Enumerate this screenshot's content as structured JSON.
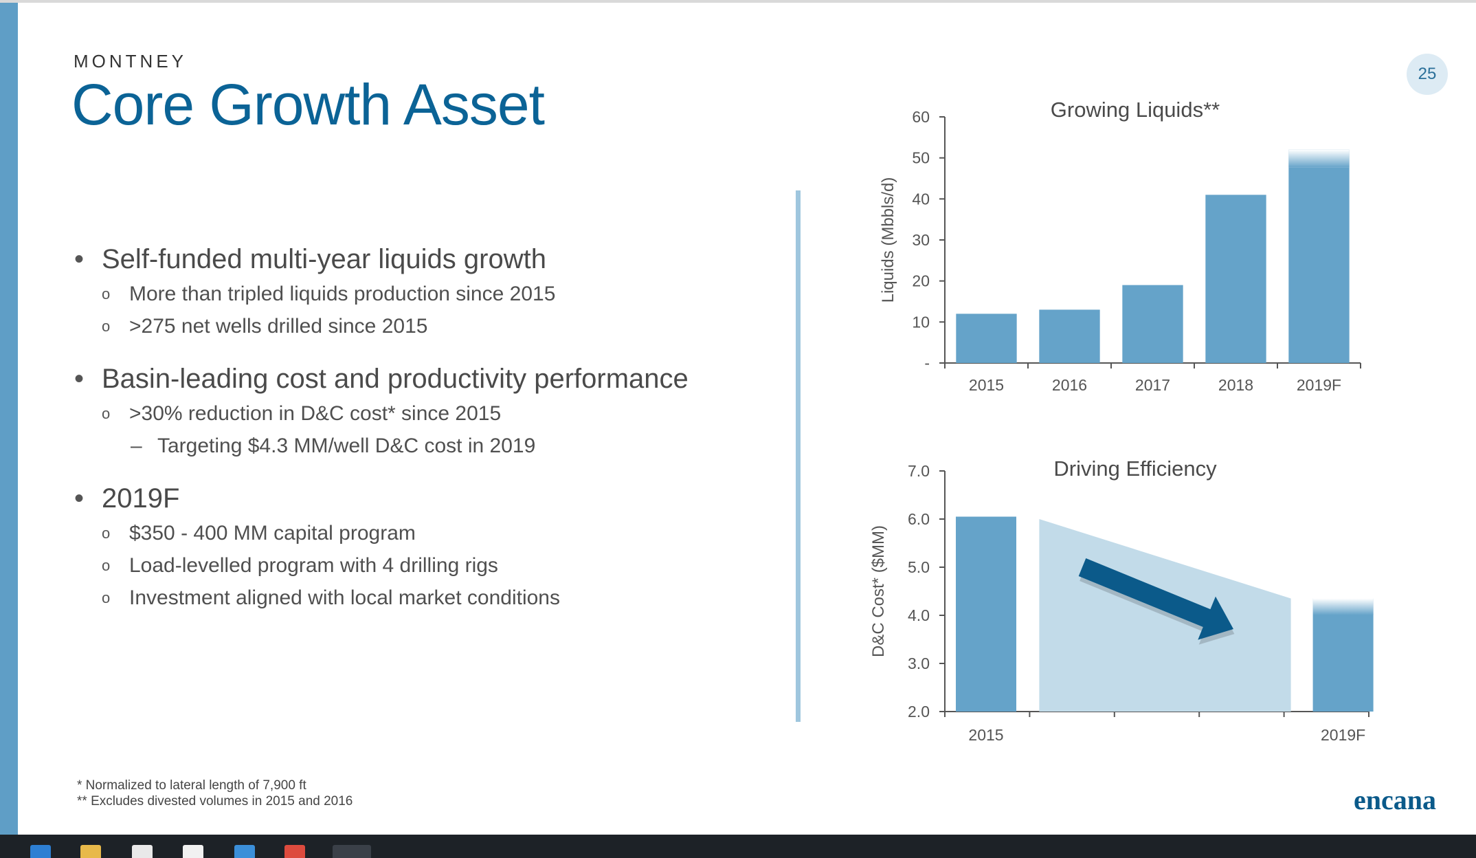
{
  "header": {
    "eyebrow": "MONTNEY",
    "title": "Core Growth Asset",
    "page_number": "25"
  },
  "bullets": [
    {
      "text": "Self-funded multi-year liquids growth",
      "subs": [
        {
          "text": "More than tripled liquids production since 2015",
          "subs": []
        },
        {
          "text": ">275 net wells drilled since 2015",
          "subs": []
        }
      ]
    },
    {
      "text": "Basin-leading cost and productivity performance",
      "subs": [
        {
          "text": ">30% reduction in D&C cost* since 2015",
          "subs": [
            {
              "text": "Targeting $4.3 MM/well D&C cost in 2019"
            }
          ]
        }
      ]
    },
    {
      "text": "2019F",
      "subs": [
        {
          "text": "$350 - 400 MM capital program",
          "subs": []
        },
        {
          "text": "Load-levelled program with 4 drilling rigs",
          "subs": []
        },
        {
          "text": "Investment aligned with local market conditions",
          "subs": []
        }
      ]
    }
  ],
  "markers": {
    "level2": "o",
    "level3": "–"
  },
  "chart_data": [
    {
      "type": "bar",
      "title": "Growing Liquids**",
      "ylabel": "Liquids  (Mbbls/d)",
      "xlabel": "",
      "categories": [
        "2015",
        "2016",
        "2017",
        "2018",
        "2019F"
      ],
      "values": [
        12,
        13,
        19,
        41,
        52
      ],
      "ylim": [
        0,
        60
      ],
      "yticks": [
        0,
        10,
        20,
        30,
        40,
        50,
        60
      ],
      "ytick_labels": [
        "-",
        "10",
        "20",
        "30",
        "40",
        "50",
        "60"
      ],
      "faded_top": [
        false,
        false,
        false,
        false,
        true
      ],
      "grid": false,
      "bar_color": "#65a3c9"
    },
    {
      "type": "bar",
      "title": "Driving Efficiency",
      "ylabel": "D&C Cost* ($MM)",
      "xlabel": "",
      "categories": [
        "2015",
        "2019F"
      ],
      "values": [
        6.05,
        4.35
      ],
      "ylim": [
        2.0,
        7.0
      ],
      "yticks": [
        2.0,
        3.0,
        4.0,
        5.0,
        6.0,
        7.0
      ],
      "ytick_labels": [
        "2.0",
        "3.0",
        "4.0",
        "5.0",
        "6.0",
        "7.0"
      ],
      "trend_band": {
        "start": 6.0,
        "end": 4.35
      },
      "faded_top": [
        false,
        true
      ],
      "grid": false,
      "bar_color": "#65a3c9",
      "band_color": "#c2dbe9",
      "arrow_color": "#0b5a8a"
    }
  ],
  "footnotes": [
    "* Normalized to lateral length of 7,900 ft",
    "** Excludes divested volumes in 2015 and 2016"
  ],
  "logo": {
    "text": "encana"
  },
  "colors": {
    "accent": "#0b6396",
    "left_bar": "#5f9ec6",
    "divider": "#9fc6de"
  }
}
